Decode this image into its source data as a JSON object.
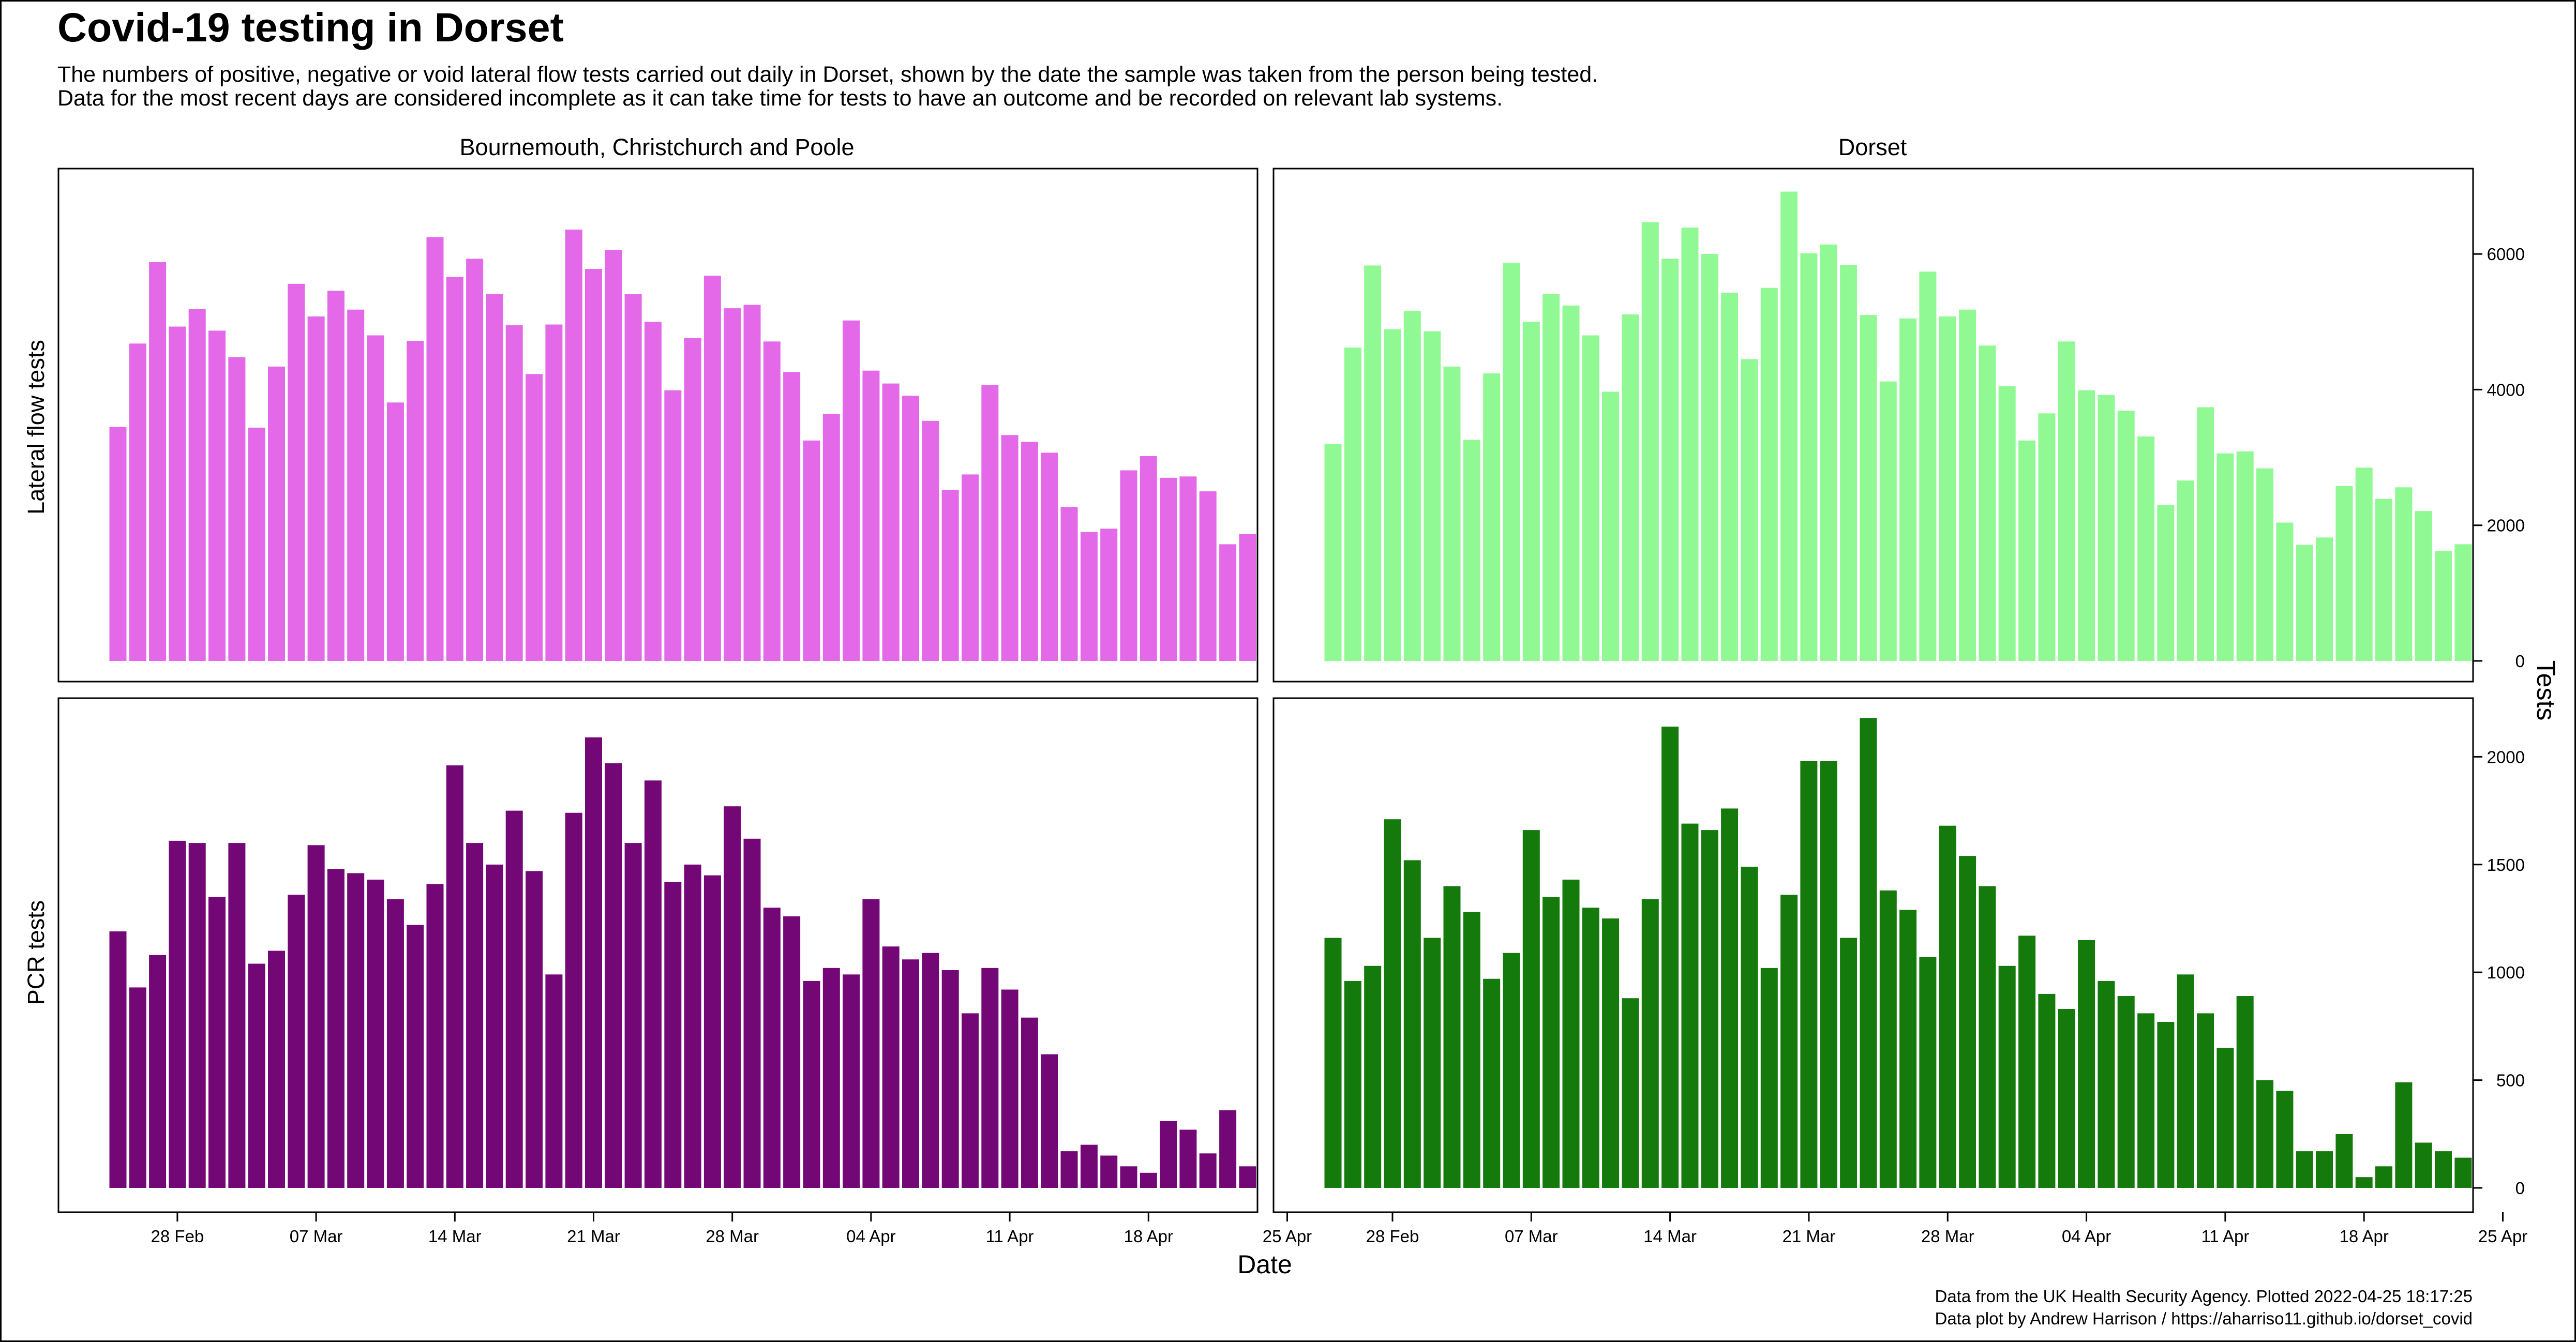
{
  "title": "Covid-19 testing in Dorset",
  "subtitle_lines": [
    "The numbers of positive, negative or void lateral flow tests carried out daily in Dorset, shown by the date the sample was taken from the person being tested.",
    "Data for the most recent days are considered incomplete as it can take time for tests to have an outcome and be recorded on relevant lab systems."
  ],
  "footer_lines": [
    "Data from the UK Health Security Agency. Plotted 2022-04-25 18:17:25",
    "Data plot by Andrew Harrison / https://aharriso11.github.io/dorset_covid"
  ],
  "chart_data": {
    "type": "bar",
    "xlabel": "Date",
    "ylabel": "Tests",
    "x_start": "2022-02-25",
    "x_end": "2022-04-21",
    "x_ticks": [
      "28 Feb",
      "07 Mar",
      "14 Mar",
      "21 Mar",
      "28 Mar",
      "04 Apr",
      "11 Apr",
      "18 Apr",
      "25 Apr"
    ],
    "x_tick_dates": [
      "2022-02-28",
      "2022-03-07",
      "2022-03-14",
      "2022-03-21",
      "2022-03-28",
      "2022-04-04",
      "2022-04-11",
      "2022-04-18",
      "2022-04-25"
    ],
    "columns": [
      "Bournemouth, Christchurch and Poole",
      "Dorset"
    ],
    "rows": [
      "Lateral flow tests",
      "PCR tests"
    ],
    "row_ylim": [
      [
        0,
        7000
      ],
      [
        0,
        2200
      ]
    ],
    "row_yticks": [
      [
        0,
        2000,
        4000,
        6000
      ],
      [
        0,
        500,
        1000,
        1500,
        2000
      ]
    ],
    "panels": [
      {
        "row": "Lateral flow tests",
        "column": "Bournemouth, Christchurch and Poole",
        "color": "#e369e9",
        "values": [
          3450,
          4680,
          5880,
          4930,
          5190,
          4870,
          4480,
          3440,
          4340,
          5560,
          5080,
          5460,
          5180,
          4800,
          3810,
          4720,
          6250,
          5660,
          5930,
          5410,
          4950,
          4230,
          4960,
          6360,
          5780,
          6060,
          5410,
          5000,
          3990,
          4760,
          5680,
          5200,
          5250,
          4710,
          4260,
          3250,
          3640,
          5020,
          4280,
          4090,
          3910,
          3540,
          2520,
          2750,
          4070,
          3330,
          3230,
          3070,
          2270,
          1900,
          1950,
          2810,
          3020,
          2700,
          2720,
          2500,
          1720,
          1870
        ]
      },
      {
        "row": "Lateral flow tests",
        "column": "Dorset",
        "color": "#91f993",
        "values": [
          3200,
          4620,
          5830,
          4890,
          5160,
          4860,
          4340,
          3260,
          4240,
          5870,
          5000,
          5410,
          5240,
          4800,
          3970,
          5110,
          6470,
          5930,
          6390,
          6000,
          5430,
          4450,
          5500,
          6920,
          6010,
          6140,
          5840,
          5100,
          4120,
          5050,
          5740,
          5080,
          5180,
          4650,
          4050,
          3250,
          3650,
          4710,
          3990,
          3920,
          3690,
          3310,
          2300,
          2660,
          3740,
          3060,
          3090,
          2840,
          2040,
          1710,
          1820,
          2580,
          2850,
          2390,
          2560,
          2210,
          1620,
          1720
        ]
      },
      {
        "row": "PCR tests",
        "column": "Bournemouth, Christchurch and Poole",
        "color": "#730776",
        "values": [
          1190,
          930,
          1080,
          1610,
          1600,
          1350,
          1600,
          1040,
          1100,
          1360,
          1590,
          1480,
          1460,
          1430,
          1340,
          1220,
          1410,
          1960,
          1600,
          1500,
          1750,
          1470,
          990,
          1740,
          2090,
          1970,
          1600,
          1890,
          1420,
          1500,
          1450,
          1770,
          1620,
          1300,
          1260,
          960,
          1020,
          990,
          1340,
          1120,
          1060,
          1090,
          1010,
          810,
          1020,
          920,
          790,
          620,
          170,
          200,
          150,
          100,
          70,
          310,
          270,
          160,
          360,
          100
        ]
      },
      {
        "row": "PCR tests",
        "column": "Dorset",
        "color": "#137a0b",
        "values": [
          1160,
          960,
          1030,
          1710,
          1520,
          1160,
          1400,
          1280,
          970,
          1090,
          1660,
          1350,
          1430,
          1300,
          1250,
          880,
          1340,
          2140,
          1690,
          1660,
          1760,
          1490,
          1020,
          1360,
          1980,
          1980,
          1160,
          2180,
          1380,
          1290,
          1070,
          1680,
          1540,
          1400,
          1030,
          1170,
          900,
          830,
          1150,
          960,
          890,
          810,
          770,
          990,
          810,
          650,
          890,
          500,
          450,
          170,
          170,
          250,
          50,
          100,
          490,
          210,
          170,
          140
        ]
      }
    ]
  }
}
